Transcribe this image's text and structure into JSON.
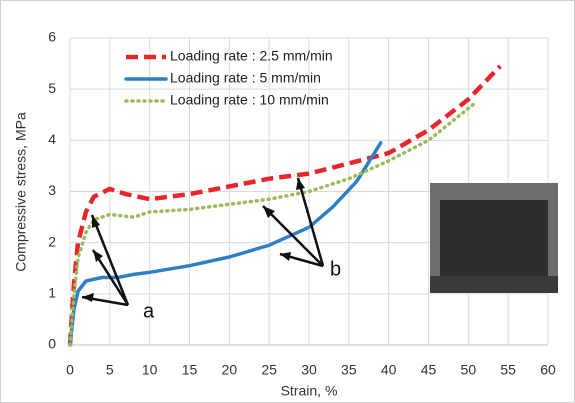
{
  "chart_data": {
    "type": "line",
    "xlabel": "Strain, %",
    "ylabel": "Compressive stress, MPa",
    "xlim": [
      0,
      60
    ],
    "ylim": [
      0,
      6
    ],
    "xticks": [
      0,
      5,
      10,
      15,
      20,
      25,
      30,
      35,
      40,
      45,
      50,
      55,
      60
    ],
    "yticks": [
      0,
      1,
      2,
      3,
      4,
      5,
      6
    ],
    "grid": true,
    "legend": "upper left",
    "series": [
      {
        "name": "Loading rate : 2.5 mm/min",
        "color": "#e8262b",
        "linestyle": "dashed",
        "x": [
          0,
          0.5,
          1,
          2,
          3,
          5,
          7,
          10,
          15,
          20,
          25,
          30,
          35,
          40,
          45,
          50,
          54
        ],
        "values": [
          0,
          1.2,
          2.0,
          2.6,
          2.9,
          3.05,
          2.95,
          2.85,
          2.95,
          3.1,
          3.25,
          3.35,
          3.55,
          3.75,
          4.2,
          4.8,
          5.45
        ]
      },
      {
        "name": "Loading rate : 5 mm/min",
        "color": "#2e7fc4",
        "linestyle": "solid",
        "x": [
          0,
          0.5,
          1,
          2,
          4,
          6,
          8,
          10,
          15,
          20,
          25,
          30,
          33,
          36,
          39
        ],
        "values": [
          0,
          0.7,
          1.05,
          1.25,
          1.32,
          1.32,
          1.38,
          1.42,
          1.55,
          1.72,
          1.95,
          2.3,
          2.7,
          3.2,
          3.95
        ]
      },
      {
        "name": "Loading rate : 10 mm/min",
        "color": "#9bbb59",
        "linestyle": "dotted",
        "x": [
          0,
          0.5,
          1,
          2,
          3,
          5,
          8,
          10,
          15,
          20,
          25,
          30,
          35,
          40,
          45,
          51
        ],
        "values": [
          0,
          1.0,
          1.7,
          2.2,
          2.45,
          2.55,
          2.5,
          2.6,
          2.65,
          2.75,
          2.85,
          3.0,
          3.25,
          3.6,
          4.0,
          4.75
        ]
      }
    ],
    "annotations": [
      "a",
      "b"
    ]
  }
}
